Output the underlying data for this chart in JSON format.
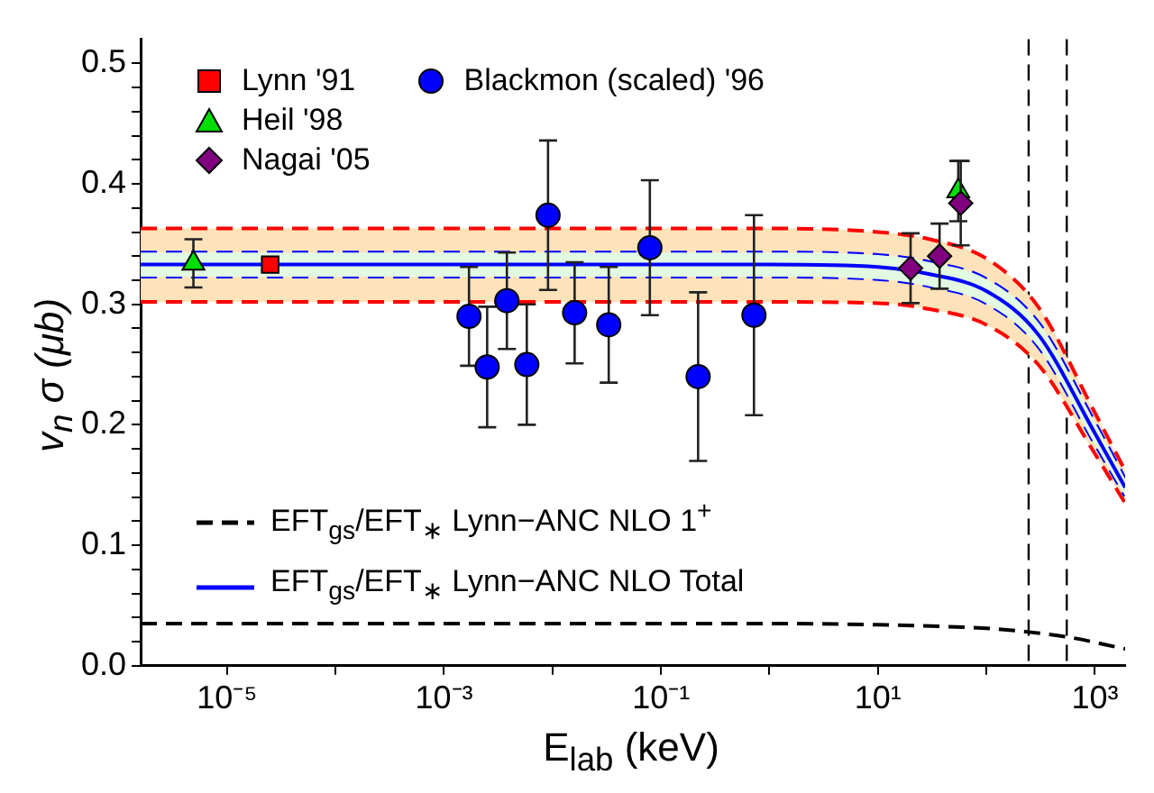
{
  "chart_data": {
    "type": "scatter",
    "xlabel": "E$_{lab}$ (keV)",
    "ylabel": "v$_{n}$ σ (μb)",
    "log": "x",
    "grid": false,
    "legend": "top left",
    "xlim": [
      1.6e-06,
      1900
    ],
    "ylim": [
      0,
      0.52
    ],
    "xticks": [
      {
        "value": 1e-05,
        "label": "10⁻⁵"
      },
      {
        "value": 0.0001,
        "label": null
      },
      {
        "value": 0.001,
        "label": "10⁻³"
      },
      {
        "value": 0.01,
        "label": null
      },
      {
        "value": 0.1,
        "label": "10⁻¹"
      },
      {
        "value": 1,
        "label": null
      },
      {
        "value": 10,
        "label": "10¹"
      },
      {
        "value": 100,
        "label": null
      },
      {
        "value": 1000,
        "label": "10³"
      }
    ],
    "yticks": [
      {
        "value": 0,
        "label": "0.0"
      },
      {
        "value": 0.02,
        "label": null
      },
      {
        "value": 0.04,
        "label": null
      },
      {
        "value": 0.06,
        "label": null
      },
      {
        "value": 0.08,
        "label": null
      },
      {
        "value": 0.1,
        "label": "0.1"
      },
      {
        "value": 0.12,
        "label": null
      },
      {
        "value": 0.14,
        "label": null
      },
      {
        "value": 0.16,
        "label": null
      },
      {
        "value": 0.18,
        "label": null
      },
      {
        "value": 0.2,
        "label": "0.2"
      },
      {
        "value": 0.22,
        "label": null
      },
      {
        "value": 0.24,
        "label": null
      },
      {
        "value": 0.26,
        "label": null
      },
      {
        "value": 0.28,
        "label": null
      },
      {
        "value": 0.3,
        "label": "0.3"
      },
      {
        "value": 0.32,
        "label": null
      },
      {
        "value": 0.34,
        "label": null
      },
      {
        "value": 0.36,
        "label": null
      },
      {
        "value": 0.38,
        "label": null
      },
      {
        "value": 0.4,
        "label": "0.4"
      },
      {
        "value": 0.42,
        "label": null
      },
      {
        "value": 0.44,
        "label": null
      },
      {
        "value": 0.46,
        "label": null
      },
      {
        "value": 0.48,
        "label": null
      },
      {
        "value": 0.5,
        "label": "0.5"
      }
    ],
    "ref_lines": [
      {
        "axis": "x",
        "value": 245,
        "color": "#000000",
        "line_style": "dashed"
      },
      {
        "axis": "x",
        "value": 550,
        "color": "#000000",
        "line_style": "dashed"
      }
    ],
    "series": [
      {
        "type": "line",
        "color": "#ff0000",
        "line_style": "dashed",
        "marker": "none",
        "x": [
          1.6e-06,
          1,
          10,
          30,
          100,
          300,
          1000,
          1900
        ],
        "values": [
          0.363,
          0.363,
          0.36,
          0.354,
          0.338,
          0.298,
          0.21,
          0.162
        ],
        "lower": [
          0.302,
          0.302,
          0.301,
          0.296,
          0.283,
          0.25,
          0.176,
          0.135
        ],
        "upper": [
          0.363,
          0.363,
          0.36,
          0.354,
          0.338,
          0.298,
          0.21,
          0.162
        ]
      },
      {
        "type": "line",
        "color": "#ff0000",
        "line_style": "dashed",
        "marker": "none",
        "x": [
          1.6e-06,
          1,
          10,
          30,
          100,
          300,
          1000,
          1900
        ],
        "values": [
          0.302,
          0.302,
          0.301,
          0.296,
          0.283,
          0.25,
          0.176,
          0.135
        ]
      },
      {
        "type": "line",
        "color": "#0000ff",
        "line_style": "dashed",
        "marker": "none",
        "x": [
          1.6e-06,
          1,
          10,
          30,
          100,
          300,
          1000,
          1900
        ],
        "values": [
          0.343,
          0.343,
          0.341,
          0.335,
          0.321,
          0.285,
          0.202,
          0.155
        ]
      },
      {
        "type": "line",
        "color": "#0000ff",
        "line_style": "dashed",
        "marker": "none",
        "x": [
          1.6e-06,
          1,
          10,
          30,
          100,
          300,
          1000,
          1900
        ],
        "values": [
          0.323,
          0.323,
          0.321,
          0.315,
          0.301,
          0.265,
          0.184,
          0.141
        ]
      },
      {
        "type": "line",
        "name": "EFT$_{gs}$/EFT$_{∗}$ Lynn−ANC NLO Total",
        "color": "#0000ff",
        "line_style": "solid",
        "marker": "none",
        "x": [
          1.6e-06,
          1,
          10,
          30,
          100,
          300,
          1000,
          1900
        ],
        "values": [
          0.333,
          0.333,
          0.331,
          0.325,
          0.311,
          0.275,
          0.193,
          0.148
        ],
        "lower": [
          0.323,
          0.323,
          0.321,
          0.315,
          0.301,
          0.265,
          0.184,
          0.141
        ],
        "upper": [
          0.343,
          0.343,
          0.341,
          0.335,
          0.321,
          0.285,
          0.202,
          0.155
        ]
      },
      {
        "type": "line",
        "name": "EFT$_{gs}$/EFT$_{∗}$ Lynn−ANC NLO 1$^{+}$",
        "color": "#000000",
        "line_style": "dashed",
        "marker": "none",
        "x": [
          1.6e-06,
          1,
          10,
          100,
          245,
          550,
          1900
        ],
        "values": [
          0.035,
          0.035,
          0.034,
          0.031,
          0.028,
          0.024,
          0.014
        ]
      },
      {
        "type": "scatter",
        "name": "Lynn '91",
        "color": "#ff0000",
        "marker": "square",
        "x": [
          2.5e-05
        ],
        "values": [
          0.333
        ],
        "errors": [
          0.005
        ]
      },
      {
        "type": "scatter",
        "name": "Heil '98",
        "color": "#00dd00",
        "marker": "triangle",
        "x": [
          4.9e-06,
          55
        ],
        "values": [
          0.334,
          0.394
        ],
        "errors": [
          0.02,
          0.025
        ]
      },
      {
        "type": "scatter",
        "name": "Nagai '05",
        "color": "#800080",
        "marker": "diamond",
        "x": [
          20,
          37,
          58
        ],
        "values": [
          0.33,
          0.34,
          0.384
        ],
        "errors": [
          0.029,
          0.027,
          0.035
        ]
      },
      {
        "type": "scatter",
        "name": "Blackmon (scaled) '96",
        "color": "#0000ff",
        "marker": "circle",
        "x": [
          0.0017,
          0.0025,
          0.0038,
          0.0058,
          0.0091,
          0.016,
          0.033,
          0.079,
          0.22,
          0.72
        ],
        "values": [
          0.29,
          0.248,
          0.303,
          0.25,
          0.374,
          0.293,
          0.283,
          0.347,
          0.24,
          0.291
        ],
        "errors": [
          0.041,
          0.05,
          0.04,
          0.05,
          0.062,
          0.042,
          0.048,
          0.056,
          0.07,
          0.083
        ]
      }
    ]
  }
}
